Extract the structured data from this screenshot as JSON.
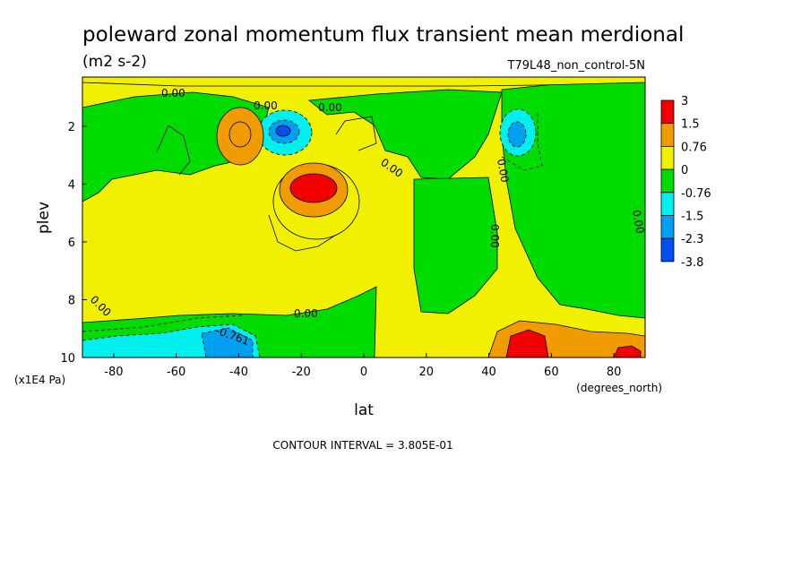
{
  "chart_data": {
    "type": "contour",
    "title": "poleward zonal momentum flux transient mean merdional",
    "units": "(m2 s-2)",
    "run_label": "T79L48_non_control-5N",
    "xlabel": "lat",
    "x_units": "(degrees_north)",
    "ylabel": "plev",
    "y_units": "(x1E4 Pa)",
    "xlim": [
      -90,
      90
    ],
    "ylim": [
      10,
      0.3
    ],
    "x_ticks": [
      "-80",
      "-60",
      "-40",
      "-20",
      "0",
      "20",
      "40",
      "60",
      "80"
    ],
    "x_tick_values": [
      -80,
      -60,
      -40,
      -20,
      0,
      20,
      40,
      60,
      80
    ],
    "y_ticks": [
      "2",
      "4",
      "6",
      "8",
      "10"
    ],
    "y_tick_values": [
      2,
      4,
      6,
      8,
      10
    ],
    "footer": "CONTOUR INTERVAL = 3.805E-01",
    "contour_labels": [
      "0.00",
      "0.00",
      "0.00",
      "0.00",
      "0.00",
      "0.00",
      "0.00",
      "0.00",
      "0.00",
      "-0.761"
    ],
    "colorbar": {
      "labels": [
        "3",
        "1.5",
        "0.76",
        "0",
        "-0.76",
        "-1.5",
        "-2.3",
        "-3.8"
      ],
      "colors": [
        "#f00000",
        "#f09c00",
        "#f0f000",
        "#00dc00",
        "#00f0f0",
        "#00a0f0",
        "#0050f0"
      ]
    },
    "colors": {
      "positive_strong": "#f00000",
      "positive_mid": "#f09c00",
      "positive_weak": "#f0f000",
      "negative_weak": "#00dc00",
      "negative_mid": "#00f0f0",
      "negative_strong": "#00a0f0"
    },
    "features": [
      {
        "lat": -40,
        "plev": 2.2,
        "sign": "positive",
        "level": "mid"
      },
      {
        "lat": -25,
        "plev": 2.0,
        "sign": "negative",
        "level": "strong"
      },
      {
        "lat": -15,
        "plev": 4.0,
        "sign": "positive",
        "level": "strong"
      },
      {
        "lat": 48,
        "plev": 2.2,
        "sign": "negative",
        "level": "mid"
      },
      {
        "lat": 52,
        "plev": 9.5,
        "sign": "positive",
        "level": "strong"
      },
      {
        "lat": 82,
        "plev": 9.8,
        "sign": "positive",
        "level": "strong"
      },
      {
        "lat": -45,
        "plev": 9.5,
        "sign": "negative",
        "level": "strong"
      }
    ]
  }
}
